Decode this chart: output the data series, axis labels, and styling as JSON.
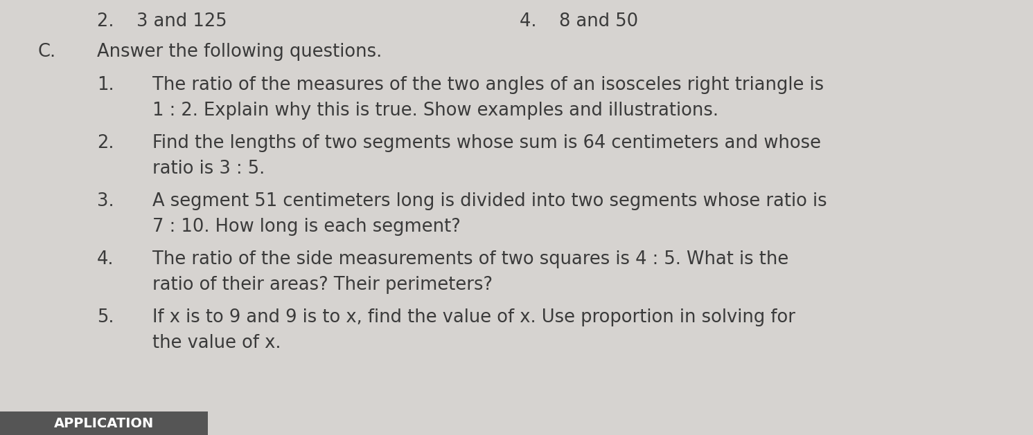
{
  "bg_color": "#d6d3d0",
  "text_color": "#3a3a3a",
  "header_left": "2.    3 and 125",
  "header_right": "4.    8 and 50",
  "section_label": "C.",
  "section_title": "Answer the following questions.",
  "items": [
    {
      "num": "1.",
      "lines": [
        "The ratio of the measures of the two angles of an isosceles right triangle is",
        "1 : 2. Explain why this is true. Show examples and illustrations."
      ]
    },
    {
      "num": "2.",
      "lines": [
        "Find the lengths of two segments whose sum is 64 centimeters and whose",
        "ratio is 3 : 5."
      ]
    },
    {
      "num": "3.",
      "lines": [
        "A segment 51 centimeters long is divided into two segments whose ratio is",
        "7 : 10. How long is each segment?"
      ]
    },
    {
      "num": "4.",
      "lines": [
        "The ratio of the side measurements of two squares is 4 : 5. What is the",
        "ratio of their areas? Their perimeters?"
      ]
    },
    {
      "num": "5.",
      "lines": [
        "If x is to 9 and 9 is to x, find the value of x. Use proportion in solving for",
        "the value of x."
      ]
    }
  ],
  "footer_label": "APPLICATION",
  "footer_bg": "#555555",
  "footer_text_color": "#ffffff"
}
